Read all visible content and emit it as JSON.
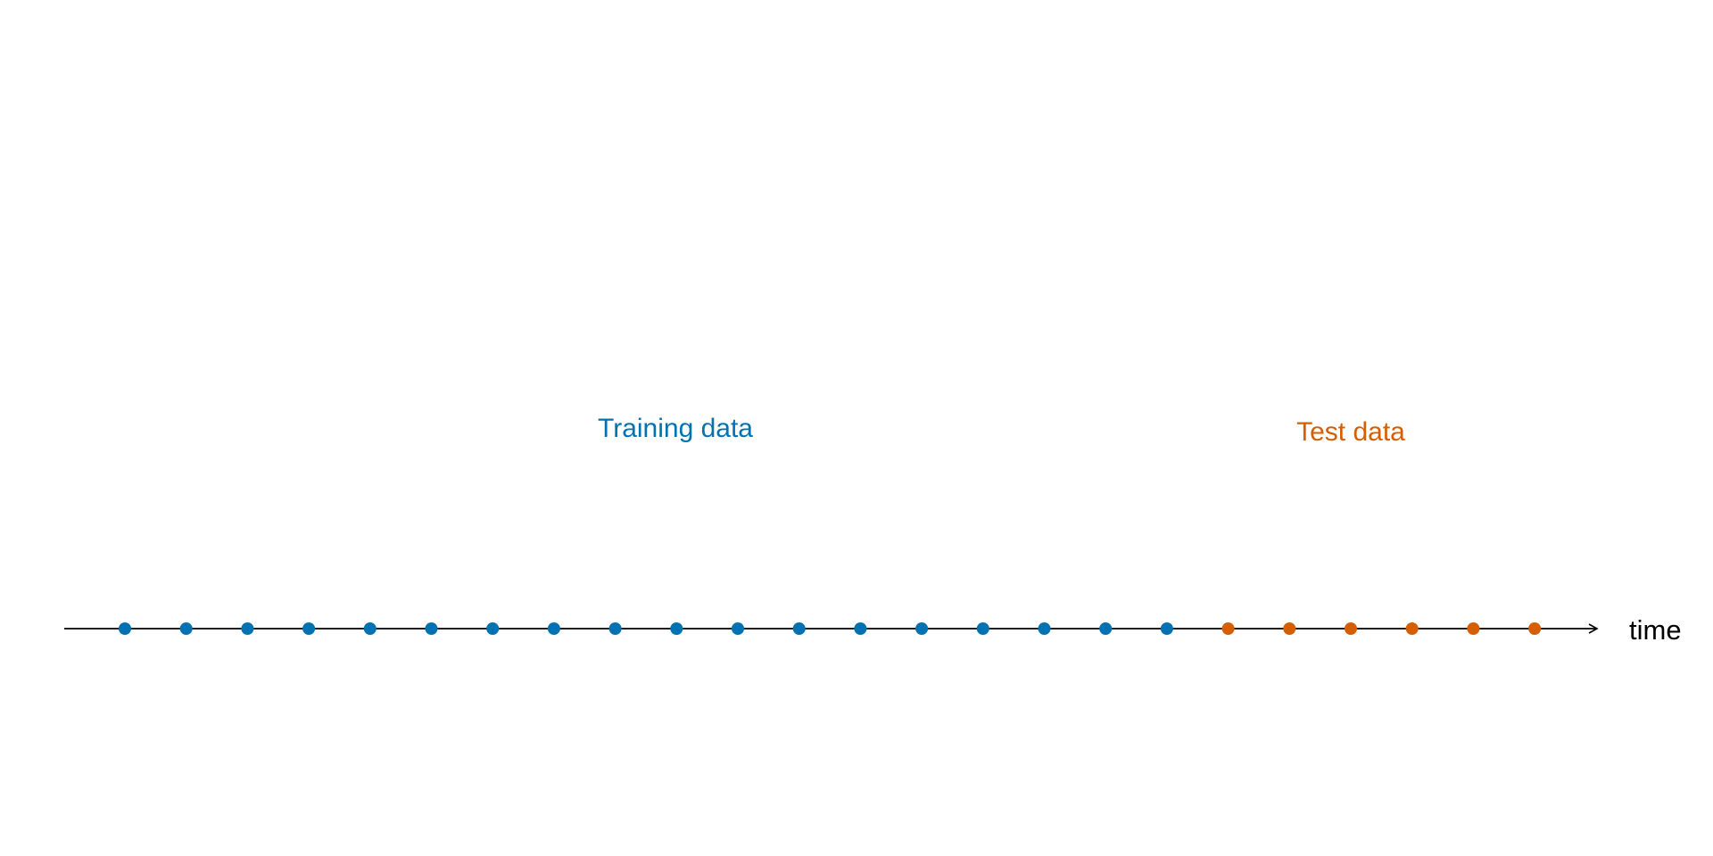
{
  "diagram": {
    "axis_label": "time",
    "groups": [
      {
        "key": "training",
        "label": "Training data",
        "count": 18,
        "color": "#0072B2"
      },
      {
        "key": "test",
        "label": "Test data",
        "count": 6,
        "color": "#D55E00"
      }
    ],
    "axis_color": "#000000"
  }
}
